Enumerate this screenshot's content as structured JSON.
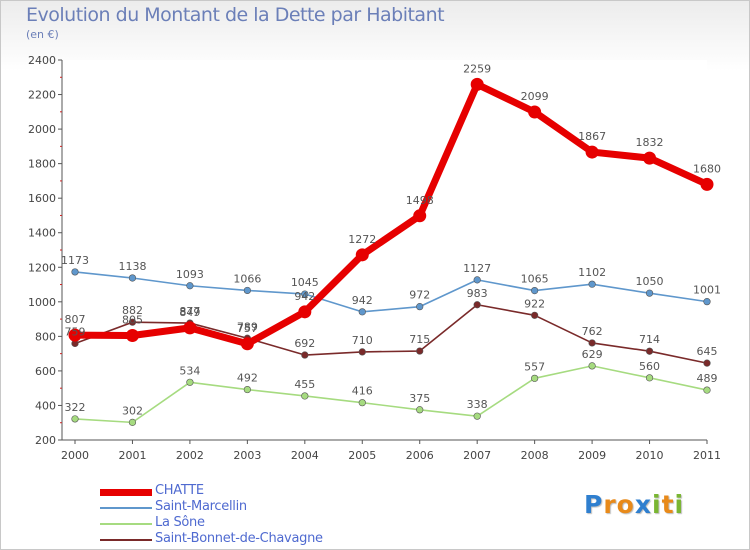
{
  "title": "Evolution du Montant de la Dette par Habitant",
  "subtitle": "(en €)",
  "logo": {
    "letters": [
      "P",
      "r",
      "o",
      "x",
      "i",
      "t",
      "i"
    ],
    "colors": [
      "#2f7fcf",
      "#e88a1a",
      "#e88a1a",
      "#2f7fcf",
      "#7ab632",
      "#e88a1a",
      "#7ab632"
    ]
  },
  "chart_data": {
    "type": "line",
    "x": [
      "2000",
      "2001",
      "2002",
      "2003",
      "2004",
      "2005",
      "2006",
      "2007",
      "2008",
      "2009",
      "2010",
      "2011"
    ],
    "yticks": [
      "2400",
      "2200",
      "2000",
      "1800",
      "1600",
      "1400",
      "1200",
      "1000",
      "800",
      "600",
      "400",
      "200"
    ],
    "ylim": [
      200,
      2400
    ],
    "grid": false,
    "legend_position": "bottom-left",
    "series": [
      {
        "name": "CHATTE",
        "color": "#e60000",
        "values": [
          807,
          805,
          849,
          757,
          942,
          1272,
          1498,
          2259,
          2099,
          1867,
          1832,
          1680
        ],
        "labels": [
          "807",
          "805",
          "849",
          "757",
          "942",
          "1272",
          "1498",
          "2259",
          "2099",
          "1867",
          "1832",
          "1680"
        ]
      },
      {
        "name": "Saint-Marcellin",
        "color": "#5f97cc",
        "values": [
          1173,
          1138,
          1093,
          1066,
          1045,
          942,
          972,
          1127,
          1065,
          1102,
          1050,
          1001
        ],
        "labels": [
          "1173",
          "1138",
          "1093",
          "1066",
          "1045",
          "942",
          "972",
          "1127",
          "1065",
          "1102",
          "1050",
          "1001"
        ]
      },
      {
        "name": "La Sône",
        "color": "#a6db80",
        "values": [
          322,
          302,
          534,
          492,
          455,
          416,
          375,
          338,
          557,
          629,
          560,
          489
        ],
        "labels": [
          "322",
          "302",
          "534",
          "492",
          "455",
          "416",
          "375",
          "338",
          "557",
          "629",
          "560",
          "489"
        ]
      },
      {
        "name": "Saint-Bonnet-de-Chavagne",
        "color": "#7a2a2a",
        "values": [
          759,
          882,
          877,
          789,
          692,
          710,
          715,
          983,
          922,
          762,
          714,
          645
        ],
        "labels": [
          "759",
          "882",
          "877",
          "789",
          "692",
          "710",
          "715",
          "983",
          "922",
          "762",
          "714",
          "645"
        ]
      }
    ]
  }
}
